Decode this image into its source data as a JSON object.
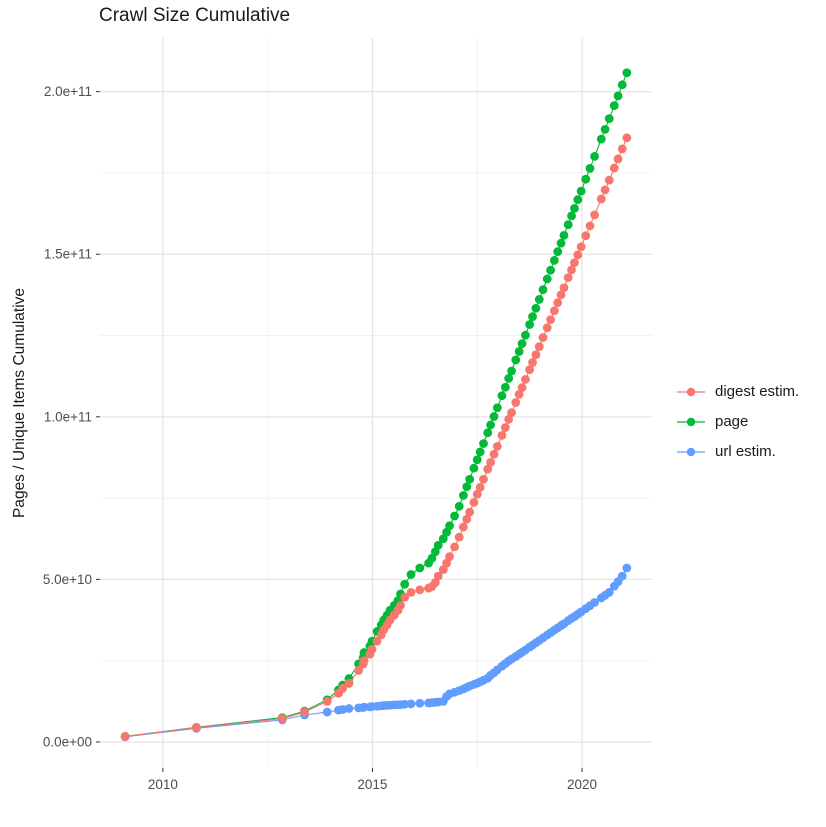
{
  "title": "Crawl Size Cumulative",
  "y_axis_label": "Pages / Unique Items Cumulative",
  "legend": [
    {
      "key": "digest",
      "label": "digest estim.",
      "color": "#F8766D"
    },
    {
      "key": "page",
      "label": "page",
      "color": "#00BA38"
    },
    {
      "key": "url",
      "label": "url estim.",
      "color": "#619CFF"
    }
  ],
  "colors": {
    "background": "#FFFFFF",
    "grid_major": "#E3E3E3",
    "grid_minor": "#F0F0F0",
    "tick": "#333333",
    "axis_text": "#4D4D4D",
    "title_text": "#1A1A1A",
    "digest": "#F8766D",
    "page": "#00BA38",
    "url": "#619CFF"
  },
  "chart_data": {
    "type": "scatter",
    "title": "Crawl Size Cumulative",
    "xlabel": "",
    "ylabel": "Pages / Unique Items Cumulative",
    "legend_position": "right",
    "grid": true,
    "values_unit": "1e9 (values below are billions of pages / unique items, cumulative)",
    "x_unit": "decimal year (one point per Common Crawl monthly/periodic crawl)",
    "x_range": [
      2008.5,
      2021.67
    ],
    "y_range": [
      -8,
      216.5
    ],
    "x_ticks": {
      "major": [
        2010,
        2015,
        2020
      ],
      "minor": [
        2012.5,
        2017.5
      ],
      "labels": [
        "2010",
        "2015",
        "2020"
      ]
    },
    "y_ticks": {
      "major": [
        0,
        50,
        100,
        150,
        200
      ],
      "minor": [
        25,
        75,
        125,
        175
      ],
      "labels": [
        "0.0e+00",
        "5.0e+10",
        "1.0e+11",
        "1.5e+11",
        "2.0e+11"
      ]
    },
    "x": [
      2009.1,
      2010.8,
      2012.85,
      2013.38,
      2013.92,
      2014.19,
      2014.29,
      2014.44,
      2014.67,
      2014.78,
      2014.8,
      2014.94,
      2014.99,
      2015.11,
      2015.21,
      2015.27,
      2015.35,
      2015.42,
      2015.52,
      2015.61,
      2015.67,
      2015.77,
      2015.92,
      2016.13,
      2016.34,
      2016.42,
      2016.5,
      2016.57,
      2016.69,
      2016.77,
      2016.84,
      2016.96,
      2017.07,
      2017.17,
      2017.25,
      2017.32,
      2017.42,
      2017.5,
      2017.57,
      2017.65,
      2017.75,
      2017.82,
      2017.9,
      2017.98,
      2018.09,
      2018.17,
      2018.25,
      2018.32,
      2018.42,
      2018.5,
      2018.57,
      2018.65,
      2018.75,
      2018.82,
      2018.9,
      2018.98,
      2019.07,
      2019.17,
      2019.25,
      2019.34,
      2019.42,
      2019.5,
      2019.57,
      2019.67,
      2019.75,
      2019.82,
      2019.9,
      2019.98,
      2020.09,
      2020.19,
      2020.3,
      2020.46,
      2020.55,
      2020.65,
      2020.77,
      2020.86,
      2020.96,
      2021.07
    ],
    "series": [
      {
        "name": "digest estim.",
        "key": "digest",
        "color": "#F8766D",
        "values": [
          1.7,
          4.4,
          7.2,
          9.2,
          12.5,
          15,
          16.5,
          18,
          22,
          24,
          25,
          27,
          28.5,
          31,
          33,
          34.5,
          36,
          37.5,
          39,
          40.5,
          42,
          44.5,
          46,
          46.8,
          47.3,
          47.8,
          49,
          51,
          53,
          55,
          57,
          60,
          63,
          66.1,
          68.5,
          70.7,
          73.7,
          76.2,
          78.3,
          80.8,
          83.9,
          86,
          88.5,
          90.9,
          94.3,
          96.7,
          99.2,
          101.3,
          104.4,
          106.9,
          109,
          111.5,
          114.5,
          116.7,
          119.1,
          121.6,
          124.4,
          127.4,
          129.9,
          132.6,
          135.1,
          137.5,
          139.7,
          142.8,
          145.2,
          147.4,
          149.8,
          152.3,
          155.7,
          158.7,
          162.1,
          167,
          169.8,
          172.8,
          176.5,
          179.3,
          182.4,
          185.8
        ]
      },
      {
        "name": "page",
        "key": "page",
        "color": "#00BA38",
        "values": [
          1.7,
          4.5,
          7.5,
          9.5,
          13,
          16,
          17.5,
          19.5,
          24,
          26,
          27.5,
          29.5,
          31,
          34,
          36,
          37.5,
          39,
          40.5,
          42,
          43.5,
          45.5,
          48.5,
          51.5,
          53.5,
          55,
          56.5,
          58.5,
          60.5,
          62.5,
          64.5,
          66.5,
          69.5,
          72.5,
          75.8,
          78.5,
          80.8,
          84.2,
          86.8,
          89.2,
          91.8,
          95.1,
          97.5,
          100.1,
          102.8,
          106.5,
          109.1,
          111.8,
          114.1,
          117.5,
          120.1,
          122.5,
          125.1,
          128.4,
          130.8,
          133.4,
          136.1,
          139.1,
          142.4,
          145.1,
          148.1,
          150.8,
          153.4,
          155.8,
          159.1,
          161.8,
          164.1,
          166.8,
          169.4,
          173.1,
          176.4,
          180.1,
          185.4,
          188.4,
          191.7,
          195.7,
          198.7,
          202.1,
          205.8
        ]
      },
      {
        "name": "url estim.",
        "key": "url",
        "color": "#619CFF",
        "values": [
          1.6,
          4.2,
          6.8,
          8.3,
          9.2,
          9.8,
          10,
          10.3,
          10.5,
          10.6,
          10.7,
          10.8,
          10.9,
          11,
          11.1,
          11.2,
          11.25,
          11.3,
          11.4,
          11.45,
          11.5,
          11.6,
          11.7,
          11.9,
          12,
          12.1,
          12.2,
          12.3,
          12.5,
          14,
          14.8,
          15.3,
          15.8,
          16.3,
          16.8,
          17.2,
          17.7,
          18.1,
          18.5,
          19,
          19.6,
          20.5,
          21.3,
          22.2,
          23.3,
          24.1,
          24.9,
          25.5,
          26.3,
          27,
          27.6,
          28.3,
          29.2,
          29.8,
          30.5,
          31.2,
          32,
          32.9,
          33.6,
          34.4,
          35.1,
          35.8,
          36.4,
          37.3,
          38,
          38.6,
          39.3,
          40,
          41,
          41.9,
          42.9,
          44.3,
          45.1,
          46,
          47.9,
          49.3,
          51,
          53.5
        ]
      }
    ]
  }
}
